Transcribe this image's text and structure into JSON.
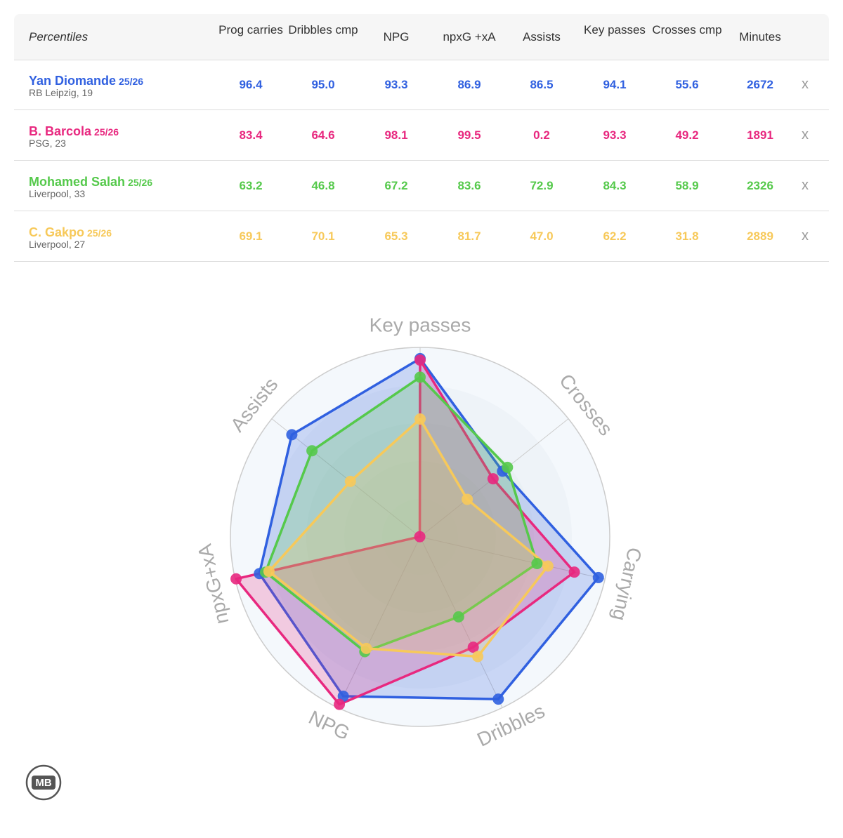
{
  "table": {
    "header": [
      "Percentiles",
      "Prog carries",
      "Dribbles cmp",
      "NPG",
      "npxG +xA",
      "Assists",
      "Key passes",
      "Crosses cmp",
      "Minutes"
    ],
    "rows": [
      {
        "name": "Yan Diomande",
        "season": "25/26",
        "club": "RB Leipzig, 19",
        "color": "#3060e0",
        "cells": [
          "96.4",
          "95.0",
          "93.3",
          "86.9",
          "86.5",
          "94.1",
          "55.6",
          "2672"
        ],
        "remove": "x"
      },
      {
        "name": "B. Barcola",
        "season": "25/26",
        "club": "PSG, 23",
        "color": "#e8287f",
        "cells": [
          "83.4",
          "64.6",
          "98.1",
          "99.5",
          "0.2",
          "93.3",
          "49.2",
          "1891"
        ],
        "remove": "x"
      },
      {
        "name": "Mohamed Salah",
        "season": "25/26",
        "club": "Liverpool, 33",
        "color": "#55c94b",
        "cells": [
          "63.2",
          "46.8",
          "67.2",
          "83.6",
          "72.9",
          "84.3",
          "58.9",
          "2326"
        ],
        "remove": "x"
      },
      {
        "name": "C. Gakpo",
        "season": "25/26",
        "club": "Liverpool, 27",
        "color": "#f7c95a",
        "cells": [
          "69.1",
          "70.1",
          "65.3",
          "81.7",
          "47.0",
          "62.2",
          "31.8",
          "2889"
        ],
        "remove": "x"
      }
    ]
  },
  "chart_data": {
    "type": "radar",
    "axes": [
      "Key passes",
      "Crosses",
      "Carrying",
      "Dribbles",
      "NPG",
      "npxG+xA",
      "Assists"
    ],
    "rlim": [
      0,
      100
    ],
    "rticks": [
      20,
      40,
      60,
      80,
      100
    ],
    "series": [
      {
        "color": "#3060e0",
        "values": [
          94.1,
          55.6,
          96.4,
          95.0,
          93.3,
          86.9,
          86.5
        ]
      },
      {
        "color": "#e8287f",
        "values": [
          93.3,
          49.2,
          83.4,
          64.6,
          98.1,
          99.5,
          0.2
        ]
      },
      {
        "color": "#55c94b",
        "values": [
          84.3,
          58.9,
          63.2,
          46.8,
          67.2,
          83.6,
          72.9
        ]
      },
      {
        "color": "#f7c95a",
        "values": [
          62.2,
          31.8,
          69.1,
          70.1,
          65.3,
          81.7,
          47.0
        ]
      }
    ]
  },
  "logo": "MB"
}
